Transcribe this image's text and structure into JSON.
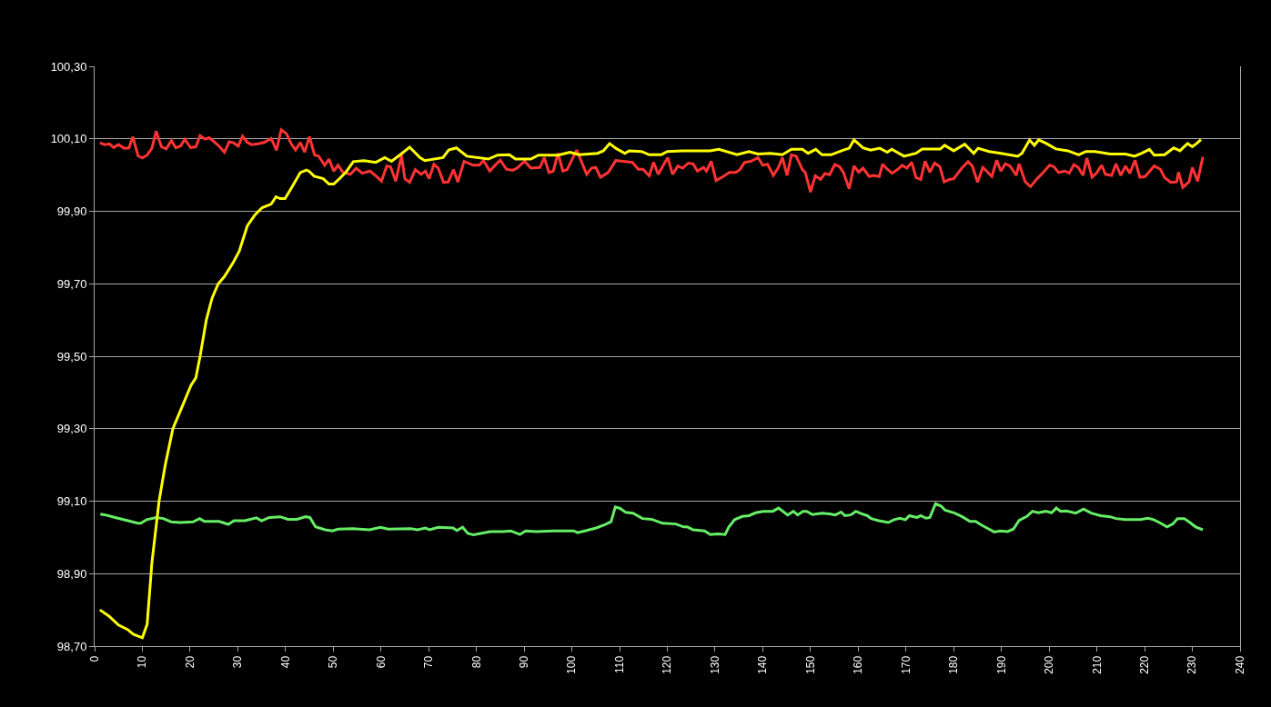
{
  "chart_data": {
    "type": "line",
    "xlim": [
      0,
      240
    ],
    "xticks": [
      0,
      10,
      20,
      30,
      40,
      50,
      60,
      70,
      80,
      90,
      100,
      110,
      120,
      130,
      140,
      150,
      160,
      170,
      180,
      190,
      200,
      210,
      220,
      230,
      240
    ],
    "ylim": [
      98.7,
      100.3
    ],
    "yticks": [
      {
        "value": 98.7,
        "label": "98,70"
      },
      {
        "value": 98.9,
        "label": "98,90"
      },
      {
        "value": 99.1,
        "label": "99,10"
      },
      {
        "value": 99.3,
        "label": "99,30"
      },
      {
        "value": 99.5,
        "label": "99,50"
      },
      {
        "value": 99.7,
        "label": "99,70"
      },
      {
        "value": 99.9,
        "label": "99,90"
      },
      {
        "value": 100.1,
        "label": "100,10"
      },
      {
        "value": 100.3,
        "label": "100,30"
      }
    ],
    "grid": "y",
    "marker": "none",
    "line_style": "solid",
    "series": [
      {
        "color": "#ff3333",
        "x": [
          1.1,
          2.1,
          3.1,
          4,
          5,
          6.2,
          7.2,
          8,
          9.1,
          10,
          11,
          12,
          12.9,
          14,
          15,
          16.1,
          17,
          18,
          18.9,
          20.1,
          21.2,
          22.1,
          23.1,
          24,
          25.3,
          26.2,
          27.2,
          28.2,
          29.1,
          30.1,
          31,
          32,
          32.9,
          34.2,
          35.5,
          37,
          38.1,
          39.1,
          40.2,
          41.2,
          42.1,
          43.1,
          44,
          45,
          46.1,
          46.9,
          48.2,
          49.1,
          50.1,
          51,
          52,
          53.6,
          54.8,
          56.1,
          57.7,
          59,
          60.1,
          61.2,
          62,
          63.1,
          64.3,
          65,
          66,
          67.2,
          68.4,
          69.3,
          70.1,
          71.1,
          72,
          73.1,
          74.1,
          75.2,
          76.1,
          77.4,
          79.3,
          80.6,
          81.5,
          82.8,
          83.9,
          85,
          86.3,
          87.6,
          88.5,
          90.1,
          91.4,
          93.3,
          94.2,
          95.2,
          96.1,
          97.1,
          98.1,
          99,
          101,
          101.9,
          103.1,
          104.1,
          105,
          106,
          107.6,
          109.2,
          110.8,
          112.7,
          113.9,
          114.9,
          116.2,
          117.1,
          118.1,
          119.4,
          120.1,
          121.1,
          122.2,
          123.2,
          124.4,
          125.4,
          126.3,
          127.6,
          128.2,
          129.2,
          130.2,
          131.7,
          133,
          134.3,
          135.2,
          136.2,
          137.5,
          139,
          140,
          141,
          142.2,
          143.2,
          144.1,
          145.1,
          146,
          147,
          148.3,
          148.9,
          150,
          151,
          152.1,
          153,
          154,
          155.1,
          156.1,
          156.9,
          158.1,
          159.1,
          160.1,
          161,
          162.3,
          163.2,
          164.4,
          165.1,
          166.1,
          167.1,
          168.3,
          169.2,
          170.2,
          171.2,
          172.1,
          173.1,
          174,
          175,
          176,
          177.1,
          178,
          179.1,
          180,
          181.7,
          183,
          183.9,
          185,
          186.1,
          188,
          189,
          189.9,
          190.8,
          191.8,
          193.1,
          193.7,
          195,
          196.1,
          197.5,
          198.8,
          200.1,
          201,
          202,
          203.3,
          204.2,
          205.2,
          206.1,
          207.1,
          207.9,
          209,
          209.9,
          211,
          211.8,
          213.1,
          214,
          215,
          216,
          216.9,
          218,
          219,
          220.1,
          222,
          223.3,
          224.2,
          225.5,
          226.7,
          227.1,
          228,
          229.3,
          230,
          231.1,
          232.2
        ],
        "values": [
          100.089,
          100.084,
          100.086,
          100.076,
          100.084,
          100.074,
          100.075,
          100.106,
          100.053,
          100.047,
          100.055,
          100.074,
          100.121,
          100.078,
          100.072,
          100.095,
          100.075,
          100.08,
          100.099,
          100.076,
          100.078,
          100.109,
          100.099,
          100.103,
          100.089,
          100.078,
          100.063,
          100.092,
          100.089,
          100.08,
          100.107,
          100.09,
          100.084,
          100.086,
          100.09,
          100.101,
          100.068,
          100.125,
          100.114,
          100.086,
          100.069,
          100.09,
          100.063,
          100.106,
          100.055,
          100.053,
          100.027,
          100.044,
          100.011,
          100.027,
          100.008,
          100.002,
          100.019,
          100.005,
          100.011,
          99.997,
          99.983,
          100.025,
          100.023,
          99.983,
          100.054,
          99.99,
          99.98,
          100.015,
          100.002,
          100.011,
          99.99,
          100.03,
          100.019,
          99.98,
          99.981,
          100.015,
          99.981,
          100.038,
          100.027,
          100.027,
          100.04,
          100.011,
          100.027,
          100.041,
          100.016,
          100.013,
          100.019,
          100.038,
          100.019,
          100.021,
          100.048,
          100.007,
          100.011,
          100.06,
          100.011,
          100.015,
          100.069,
          100.04,
          100.002,
          100.019,
          100.021,
          99.994,
          100.007,
          100.04,
          100.038,
          100.035,
          100.016,
          100.016,
          99.998,
          100.035,
          100.002,
          100.033,
          100.048,
          100.002,
          100.025,
          100.019,
          100.033,
          100.031,
          100.011,
          100.021,
          100.011,
          100.038,
          99.985,
          99.996,
          100.007,
          100.007,
          100.015,
          100.035,
          100.038,
          100.048,
          100.027,
          100.03,
          99.999,
          100.019,
          100.048,
          99.999,
          100.056,
          100.052,
          100.015,
          100.007,
          99.953,
          99.998,
          99.988,
          100.004,
          100.001,
          100.029,
          100.023,
          100.007,
          99.962,
          100.025,
          100.008,
          100.019,
          99.996,
          99.999,
          99.996,
          100.03,
          100.016,
          100.005,
          100.016,
          100.027,
          100.019,
          100.035,
          99.993,
          99.988,
          100.038,
          100.008,
          100.033,
          100.023,
          99.981,
          99.988,
          99.99,
          100.019,
          100.037,
          100.025,
          99.98,
          100.021,
          99.996,
          100.041,
          100.011,
          100.031,
          100.025,
          99.999,
          100.031,
          99.981,
          99.968,
          99.99,
          100.008,
          100.027,
          100.023,
          100.007,
          100.011,
          100.005,
          100.029,
          100.021,
          99.999,
          100.047,
          99.994,
          100.005,
          100.027,
          100.002,
          99.999,
          100.031,
          99.999,
          100.025,
          100.005,
          100.041,
          99.994,
          99.996,
          100.025,
          100.016,
          99.993,
          99.98,
          99.981,
          100.008,
          99.966,
          99.981,
          100.021,
          99.983,
          100.05
        ]
      },
      {
        "color": "#66ee66",
        "x": [
          1.2,
          2.3,
          4.3,
          7,
          9,
          9.7,
          10.9,
          12.9,
          14.4,
          16,
          17.9,
          20.6,
          22,
          23,
          26.1,
          28,
          29.2,
          31.5,
          33.9,
          35,
          36.6,
          38.9,
          40.5,
          42.4,
          44.2,
          45.1,
          46.3,
          48.3,
          49.8,
          51,
          54.1,
          57.6,
          59.9,
          61.5,
          66.2,
          67.7,
          69.3,
          70.2,
          72,
          75.1,
          75.9,
          77.1,
          78.2,
          79.4,
          82.9,
          85.6,
          87.2,
          89.1,
          90.3,
          92.6,
          96.1,
          100.4,
          101.2,
          102.7,
          105.1,
          107,
          108.2,
          109.1,
          110.1,
          111.3,
          112.8,
          114.8,
          116.7,
          119,
          121.8,
          123.4,
          124.2,
          125.4,
          127.8,
          129,
          130.6,
          132.1,
          132.9,
          134.1,
          135.7,
          137.1,
          138.5,
          140.1,
          142.1,
          143.3,
          145.2,
          146.4,
          147.3,
          148.4,
          149.2,
          150.4,
          152.4,
          154,
          155.2,
          156.4,
          157.2,
          158.4,
          159.5,
          160.7,
          161.9,
          162.7,
          164.3,
          166.3,
          167.5,
          168.7,
          169.9,
          170.7,
          172.3,
          173.1,
          174.2,
          175,
          176.2,
          177.4,
          178.2,
          180.2,
          181.8,
          183.4,
          184.6,
          185.8,
          187.4,
          188.5,
          189.7,
          191.3,
          192.5,
          193.7,
          195.3,
          196.5,
          197.7,
          199.3,
          200.5,
          201.5,
          202.4,
          203.6,
          205.6,
          207.2,
          208.8,
          210.8,
          212.8,
          214,
          216,
          219.1,
          220.7,
          221.9,
          223.1,
          224.7,
          225.9,
          226.9,
          228.3,
          229.5,
          230.7,
          232.2
        ],
        "values": [
          99.064,
          99.062,
          99.055,
          99.046,
          99.039,
          99.039,
          99.049,
          99.055,
          99.052,
          99.043,
          99.041,
          99.043,
          99.052,
          99.044,
          99.044,
          99.036,
          99.046,
          99.046,
          99.054,
          99.046,
          99.055,
          99.057,
          99.05,
          99.05,
          99.057,
          99.055,
          99.029,
          99.021,
          99.018,
          99.023,
          99.024,
          99.021,
          99.028,
          99.023,
          99.024,
          99.021,
          99.026,
          99.021,
          99.028,
          99.026,
          99.019,
          99.028,
          99.011,
          99.007,
          99.016,
          99.016,
          99.018,
          99.008,
          99.018,
          99.016,
          99.018,
          99.018,
          99.013,
          99.018,
          99.026,
          99.036,
          99.043,
          99.084,
          99.08,
          99.069,
          99.067,
          99.052,
          99.05,
          99.039,
          99.037,
          99.029,
          99.029,
          99.021,
          99.018,
          99.008,
          99.01,
          99.008,
          99.029,
          99.049,
          99.058,
          99.06,
          99.068,
          99.072,
          99.072,
          99.081,
          99.062,
          99.072,
          99.062,
          99.072,
          99.072,
          99.063,
          99.067,
          99.065,
          99.062,
          99.07,
          99.06,
          99.062,
          99.072,
          99.065,
          99.06,
          99.052,
          99.046,
          99.041,
          99.049,
          99.053,
          99.049,
          99.06,
          99.055,
          99.06,
          99.053,
          99.055,
          99.093,
          99.086,
          99.075,
          99.067,
          99.057,
          99.044,
          99.044,
          99.034,
          99.023,
          99.015,
          99.018,
          99.016,
          99.023,
          99.047,
          99.058,
          99.072,
          99.068,
          99.072,
          99.068,
          99.081,
          99.072,
          99.073,
          99.067,
          99.078,
          99.067,
          99.06,
          99.057,
          99.052,
          99.049,
          99.049,
          99.053,
          99.049,
          99.041,
          99.029,
          99.037,
          99.052,
          99.052,
          99.041,
          99.029,
          99.021
        ]
      },
      {
        "color": "#ffff00",
        "x": [
          1.1,
          3,
          5,
          6.9,
          8.1,
          10,
          11,
          12,
          13.5,
          14.8,
          16.4,
          18.3,
          20.2,
          21.2,
          22.1,
          23.4,
          24.6,
          25.9,
          27.2,
          29.1,
          30.3,
          32,
          33.6,
          35.1,
          37,
          38,
          38.9,
          39.9,
          41.5,
          43.1,
          44.4,
          45,
          46,
          47.9,
          49.1,
          50.1,
          51.3,
          52.6,
          54.2,
          56.4,
          58.9,
          60.8,
          62.2,
          64.4,
          66,
          68.2,
          69.2,
          73,
          74.2,
          75.8,
          78,
          82.5,
          84.4,
          86.9,
          88.2,
          91.4,
          93,
          97.1,
          99.6,
          101.5,
          105.4,
          106.6,
          107.9,
          109.2,
          111.1,
          112,
          114.6,
          116.2,
          118.7,
          120,
          123.2,
          128.9,
          130.8,
          134.6,
          137.1,
          139,
          141.6,
          144.1,
          146,
          148.3,
          149.5,
          151.1,
          152.4,
          154.3,
          156.9,
          158.1,
          159.1,
          161,
          162.6,
          164.5,
          166.1,
          167,
          169.6,
          172.1,
          173.4,
          177.2,
          178.1,
          180,
          182.3,
          184.2,
          185.1,
          187.4,
          189.9,
          193.4,
          194.3,
          195.9,
          196.9,
          197.8,
          199.4,
          201.4,
          203.9,
          206.2,
          207.7,
          209.6,
          212.8,
          216,
          217.9,
          219.4,
          221,
          222,
          224.2,
          226.1,
          227.4,
          229,
          230,
          230.9,
          231.8
        ],
        "values": [
          98.8,
          98.783,
          98.758,
          98.746,
          98.733,
          98.723,
          98.76,
          98.93,
          99.1,
          99.2,
          99.3,
          99.36,
          99.42,
          99.44,
          99.5,
          99.6,
          99.66,
          99.7,
          99.72,
          99.76,
          99.79,
          99.86,
          99.89,
          99.91,
          99.92,
          99.94,
          99.935,
          99.935,
          99.97,
          100.007,
          100.014,
          100.01,
          99.997,
          99.99,
          99.975,
          99.975,
          99.99,
          100.007,
          100.037,
          100.04,
          100.035,
          100.048,
          100.038,
          100.06,
          100.077,
          100.048,
          100.04,
          100.048,
          100.069,
          100.075,
          100.052,
          100.044,
          100.055,
          100.056,
          100.044,
          100.044,
          100.055,
          100.055,
          100.063,
          100.056,
          100.06,
          100.067,
          100.087,
          100.074,
          100.06,
          100.067,
          100.065,
          100.056,
          100.056,
          100.065,
          100.067,
          100.067,
          100.071,
          100.056,
          100.065,
          100.058,
          100.06,
          100.056,
          100.071,
          100.071,
          100.06,
          100.071,
          100.056,
          100.056,
          100.069,
          100.074,
          100.097,
          100.075,
          100.069,
          100.074,
          100.063,
          100.071,
          100.052,
          100.06,
          100.072,
          100.072,
          100.082,
          100.067,
          100.085,
          100.06,
          100.074,
          100.065,
          100.06,
          100.052,
          100.06,
          100.097,
          100.082,
          100.097,
          100.087,
          100.072,
          100.067,
          100.056,
          100.065,
          100.065,
          100.058,
          100.058,
          100.052,
          100.06,
          100.071,
          100.055,
          100.056,
          100.075,
          100.067,
          100.087,
          100.078,
          100.087,
          100.098
        ]
      }
    ]
  }
}
